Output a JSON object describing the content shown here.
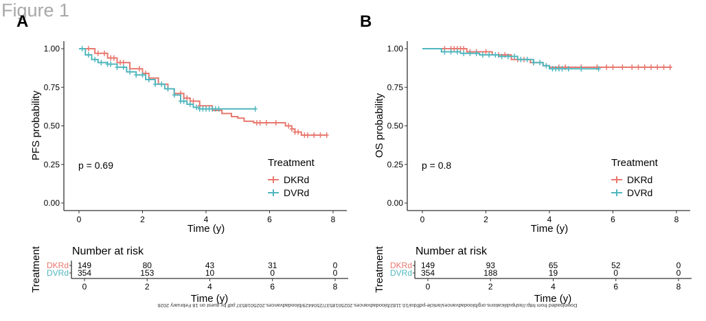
{
  "figure_title": "Figure 1",
  "watermark": "Downloaded from http://ashpublications.org/bloodadvances/article-pdf/doi/10.1182/bloodadvances.2025018537/2504429/bloodadvances.2025018537.pdf by guest on 18 February 2026",
  "colors": {
    "DKRd": "#e8776e",
    "DVRd": "#4fb6bd",
    "axis": "#333333"
  },
  "chart_data": [
    {
      "panel": "A",
      "type": "line",
      "title": "",
      "ylabel": "PFS probability",
      "xlabel": "Time (y)",
      "xlim": [
        0,
        8
      ],
      "ylim": [
        0,
        1
      ],
      "xticks": [
        "0",
        "2",
        "4",
        "6",
        "8"
      ],
      "yticks": [
        "0.00",
        "0.25",
        "0.50",
        "0.75",
        "1.00"
      ],
      "grid": false,
      "annotation": "p = 0.69",
      "legend": {
        "title": "Treatment",
        "placement": "bottom-right",
        "entries": [
          "DKRd",
          "DVRd"
        ]
      },
      "series": [
        {
          "name": "DKRd",
          "x": [
            0,
            0.5,
            0.9,
            1.2,
            1.6,
            2.0,
            2.2,
            2.5,
            2.8,
            3.0,
            3.3,
            3.5,
            3.8,
            4.2,
            4.5,
            4.8,
            5.0,
            5.2,
            5.5,
            5.8,
            6.2,
            6.5,
            6.7,
            6.8,
            7.0,
            7.8
          ],
          "y": [
            1.0,
            0.97,
            0.94,
            0.91,
            0.87,
            0.84,
            0.81,
            0.77,
            0.74,
            0.71,
            0.68,
            0.66,
            0.63,
            0.6,
            0.58,
            0.56,
            0.55,
            0.53,
            0.52,
            0.52,
            0.52,
            0.5,
            0.48,
            0.46,
            0.44,
            0.44
          ],
          "censor_x": [
            0.3,
            0.6,
            0.8,
            1.0,
            1.1,
            1.3,
            1.4,
            1.9,
            2.1,
            2.6,
            3.2,
            3.4,
            3.6,
            3.8,
            5.6,
            5.7,
            5.9,
            6.2,
            6.6,
            6.7,
            6.8,
            6.9,
            7.1,
            7.2,
            7.4,
            7.6,
            7.8
          ]
        },
        {
          "name": "DVRd",
          "x": [
            0,
            0.2,
            0.4,
            0.6,
            0.9,
            1.2,
            1.5,
            1.8,
            2.1,
            2.4,
            2.7,
            3.0,
            3.2,
            3.4,
            3.6,
            3.8,
            4.0,
            5.55
          ],
          "y": [
            1.0,
            0.96,
            0.93,
            0.91,
            0.9,
            0.88,
            0.85,
            0.83,
            0.8,
            0.77,
            0.74,
            0.7,
            0.66,
            0.64,
            0.62,
            0.61,
            0.61,
            0.61
          ],
          "censor_x": [
            0.1,
            0.3,
            0.5,
            0.7,
            0.9,
            1.0,
            1.2,
            1.4,
            1.6,
            1.8,
            2.0,
            2.2,
            2.4,
            2.6,
            2.8,
            3.0,
            3.2,
            3.3,
            3.5,
            3.7,
            3.8,
            3.9,
            4.0,
            4.1,
            4.2,
            4.3,
            4.4,
            5.55
          ]
        }
      ],
      "risk_table": {
        "title": "Number at risk",
        "ylabel": "Treatment",
        "xlabel": "Time (y)",
        "times": [
          "0",
          "2",
          "4",
          "6",
          "8"
        ],
        "rows": [
          {
            "name": "DKRd",
            "values": [
              "149",
              "80",
              "43",
              "31",
              "0"
            ]
          },
          {
            "name": "DVRd",
            "values": [
              "354",
              "153",
              "10",
              "0",
              "0"
            ]
          }
        ]
      }
    },
    {
      "panel": "B",
      "type": "line",
      "title": "",
      "ylabel": "OS probability",
      "xlabel": "Time (y)",
      "xlim": [
        0,
        8
      ],
      "ylim": [
        0,
        1
      ],
      "xticks": [
        "0",
        "2",
        "4",
        "6",
        "8"
      ],
      "yticks": [
        "0.00",
        "0.25",
        "0.50",
        "0.75",
        "1.00"
      ],
      "grid": false,
      "annotation": "p = 0.8",
      "legend": {
        "title": "Treatment",
        "placement": "bottom-right",
        "entries": [
          "DKRd",
          "DVRd"
        ]
      },
      "series": [
        {
          "name": "DKRd",
          "x": [
            0,
            0.6,
            1.4,
            2.2,
            2.8,
            3.4,
            3.8,
            4.0,
            7.85
          ],
          "y": [
            1.0,
            1.0,
            0.98,
            0.96,
            0.93,
            0.91,
            0.89,
            0.88,
            0.88
          ],
          "censor_x": [
            0.7,
            0.9,
            1.0,
            1.1,
            1.2,
            1.3,
            1.5,
            1.7,
            2.0,
            2.4,
            2.6,
            3.0,
            3.2,
            3.5,
            4.3,
            4.5,
            5.0,
            5.5,
            5.8,
            6.0,
            6.3,
            6.6,
            6.8,
            7.0,
            7.2,
            7.4,
            7.6,
            7.8
          ]
        },
        {
          "name": "DVRd",
          "x": [
            0,
            0.6,
            1.2,
            1.8,
            2.4,
            3.0,
            3.5,
            3.8,
            4.0,
            5.55
          ],
          "y": [
            1.0,
            0.98,
            0.97,
            0.96,
            0.95,
            0.93,
            0.91,
            0.89,
            0.87,
            0.87
          ],
          "censor_x": [
            0.7,
            0.9,
            1.1,
            1.3,
            1.5,
            1.7,
            1.9,
            2.1,
            2.3,
            2.5,
            2.7,
            2.9,
            3.1,
            3.3,
            3.5,
            3.7,
            3.9,
            4.1,
            4.2,
            4.3,
            4.4,
            4.6,
            5.0,
            5.55
          ]
        }
      ],
      "risk_table": {
        "title": "Number at risk",
        "ylabel": "Treatment",
        "xlabel": "Time (y)",
        "times": [
          "0",
          "2",
          "4",
          "6",
          "8"
        ],
        "rows": [
          {
            "name": "DKRd",
            "values": [
              "149",
              "93",
              "65",
              "52",
              "0"
            ]
          },
          {
            "name": "DVRd",
            "values": [
              "354",
              "188",
              "19",
              "0",
              "0"
            ]
          }
        ]
      }
    }
  ]
}
